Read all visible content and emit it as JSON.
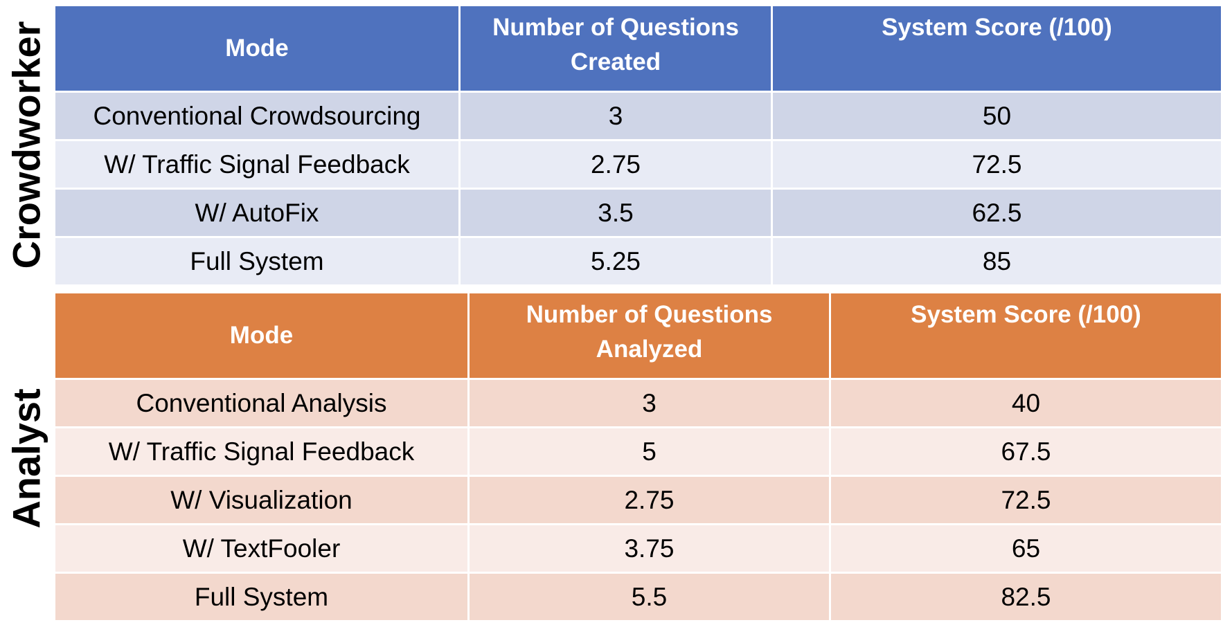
{
  "crowdworker": {
    "side_label": "Crowdworker",
    "headers": [
      "Mode",
      "Number of Questions",
      "Created",
      "System Score (/100)"
    ],
    "rows": [
      {
        "mode": "Conventional Crowdsourcing",
        "count": "3",
        "score": "50"
      },
      {
        "mode": "W/ Traffic Signal Feedback",
        "count": "2.75",
        "score": "72.5"
      },
      {
        "mode": "W/ AutoFix",
        "count": "3.5",
        "score": "62.5"
      },
      {
        "mode": "Full System",
        "count": "5.25",
        "score": "85"
      }
    ],
    "header_color": "#4f72be"
  },
  "analyst": {
    "side_label": "Analyst",
    "headers": [
      "Mode",
      "Number of Questions",
      "Analyzed",
      "System Score (/100)"
    ],
    "rows": [
      {
        "mode": "Conventional Analysis",
        "count": "3",
        "score": "40"
      },
      {
        "mode": "W/ Traffic Signal Feedback",
        "count": "5",
        "score": "67.5"
      },
      {
        "mode": "W/ Visualization",
        "count": "2.75",
        "score": "72.5"
      },
      {
        "mode": "W/ TextFooler",
        "count": "3.75",
        "score": "65"
      },
      {
        "mode": "Full System",
        "count": "5.5",
        "score": "82.5"
      }
    ],
    "header_color": "#dd8144"
  }
}
